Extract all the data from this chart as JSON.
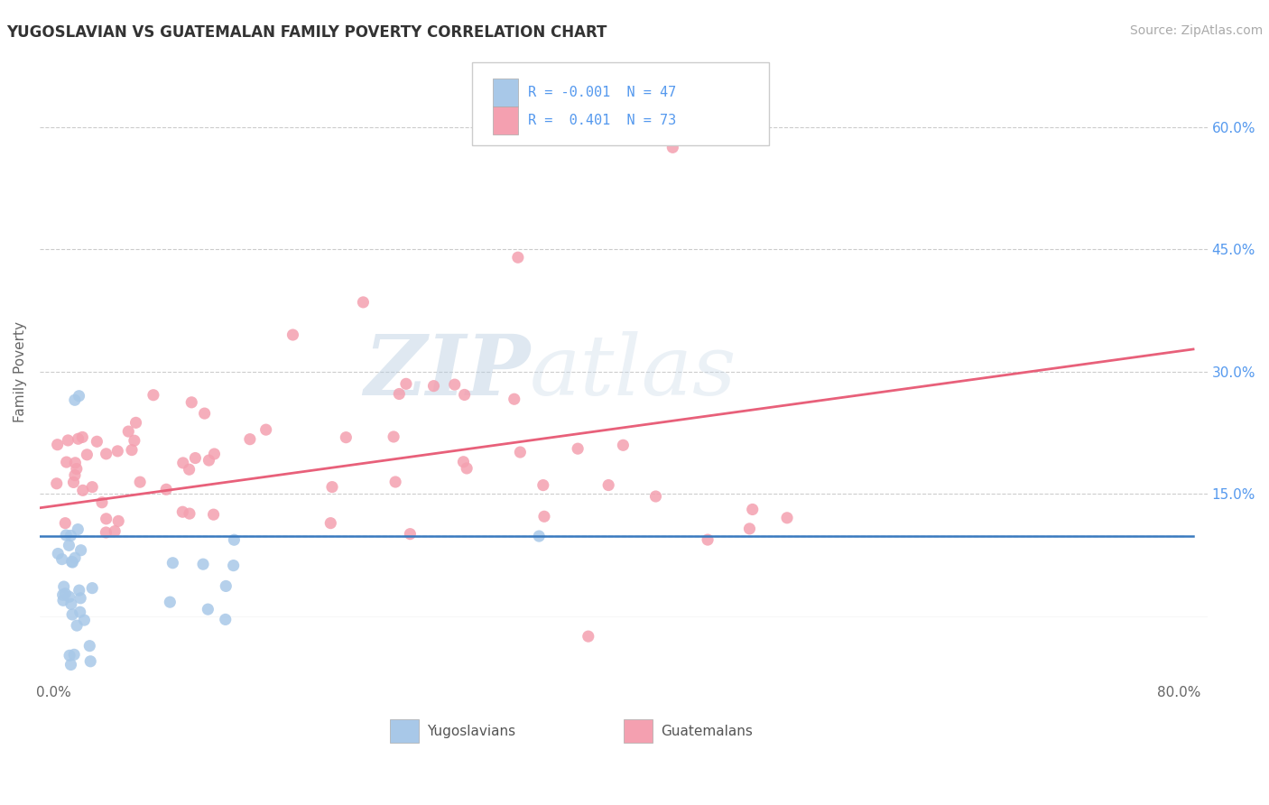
{
  "title": "YUGOSLAVIAN VS GUATEMALAN FAMILY POVERTY CORRELATION CHART",
  "source": "Source: ZipAtlas.com",
  "ylabel": "Family Poverty",
  "right_yticks": [
    "60.0%",
    "45.0%",
    "30.0%",
    "15.0%"
  ],
  "right_ytick_vals": [
    0.6,
    0.45,
    0.3,
    0.15
  ],
  "xlim": [
    -0.01,
    0.82
  ],
  "ylim": [
    -0.08,
    0.68
  ],
  "yugo_color": "#a8c8e8",
  "guate_color": "#f4a0b0",
  "yugo_line_color": "#3a7abf",
  "guate_line_color": "#e8607a",
  "background_color": "#ffffff",
  "grid_color": "#cccccc",
  "watermark_zip": "ZIP",
  "watermark_atlas": "atlas",
  "legend_yugo_r": "R = -0.001",
  "legend_yugo_n": "N = 47",
  "legend_guate_r": "R =  0.401",
  "legend_guate_n": "N = 73"
}
